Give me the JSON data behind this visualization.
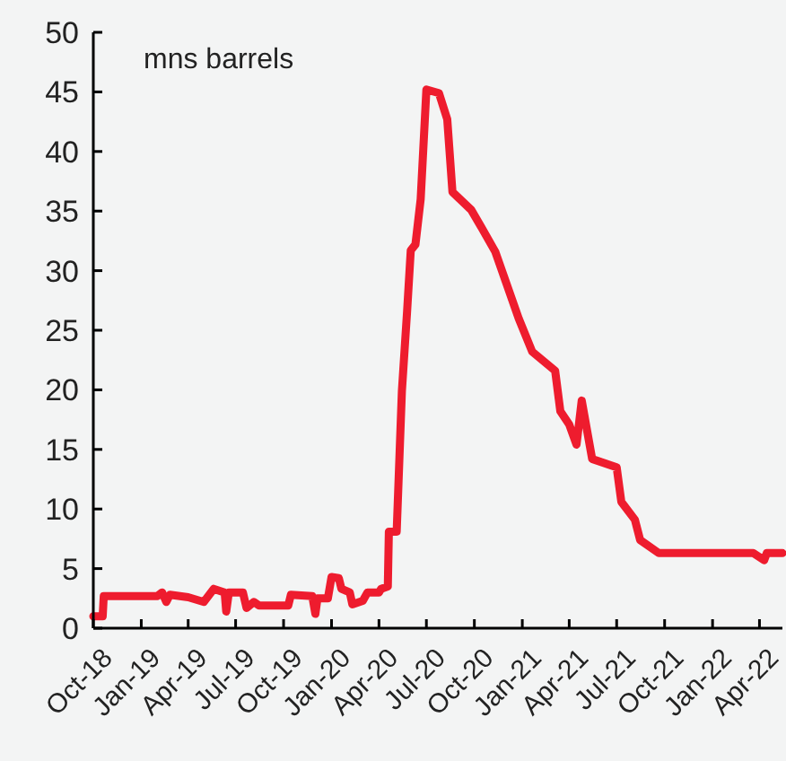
{
  "chart_data": {
    "type": "line",
    "ylabel": "mns barrels",
    "xlim": [
      "2018-10-01",
      "2022-05-15"
    ],
    "ylim": [
      0,
      50
    ],
    "yticks": [
      0,
      5,
      10,
      15,
      20,
      25,
      30,
      35,
      40,
      45,
      50
    ],
    "xticks": [
      {
        "value": "2018-10-01",
        "label": "Oct-18"
      },
      {
        "value": "2019-01-01",
        "label": "Jan-19"
      },
      {
        "value": "2019-04-01",
        "label": "Apr-19"
      },
      {
        "value": "2019-07-01",
        "label": "Jul-19"
      },
      {
        "value": "2019-10-01",
        "label": "Oct-19"
      },
      {
        "value": "2020-01-01",
        "label": "Jan-20"
      },
      {
        "value": "2020-04-01",
        "label": "Apr-20"
      },
      {
        "value": "2020-07-01",
        "label": "Jul-20"
      },
      {
        "value": "2020-10-01",
        "label": "Oct-20"
      },
      {
        "value": "2021-01-01",
        "label": "Jan-21"
      },
      {
        "value": "2021-04-01",
        "label": "Apr-21"
      },
      {
        "value": "2021-07-01",
        "label": "Jul-21"
      },
      {
        "value": "2021-10-01",
        "label": "Oct-21"
      },
      {
        "value": "2022-01-01",
        "label": "Jan-22"
      },
      {
        "value": "2022-04-01",
        "label": "Apr-22"
      }
    ],
    "grid": false,
    "marker": "none",
    "line_style": "solid",
    "series": [
      {
        "color": "#ee1c2e",
        "x": [
          "2018-10-01",
          "2018-10-19",
          "2018-10-21",
          "2019-02-01",
          "2019-02-10",
          "2019-02-18",
          "2019-02-25",
          "2019-04-01",
          "2019-05-01",
          "2019-05-20",
          "2019-06-10",
          "2019-06-13",
          "2019-06-18",
          "2019-07-15",
          "2019-07-22",
          "2019-08-05",
          "2019-08-15",
          "2019-10-10",
          "2019-10-15",
          "2019-11-25",
          "2019-12-01",
          "2019-12-05",
          "2019-12-25",
          "2020-01-01",
          "2020-01-15",
          "2020-01-20",
          "2020-02-05",
          "2020-02-10",
          "2020-03-01",
          "2020-03-10",
          "2020-04-01",
          "2020-04-05",
          "2020-04-18",
          "2020-04-20",
          "2020-05-05",
          "2020-05-15",
          "2020-05-25",
          "2020-06-01",
          "2020-06-10",
          "2020-06-20",
          "2020-07-01",
          "2020-07-25",
          "2020-08-10",
          "2020-08-20",
          "2020-09-25",
          "2020-10-15",
          "2020-11-10",
          "2020-12-01",
          "2020-12-25",
          "2021-01-20",
          "2021-03-05",
          "2021-03-15",
          "2021-04-01",
          "2021-04-15",
          "2021-04-25",
          "2021-05-15",
          "2021-07-01",
          "2021-07-10",
          "2021-08-05",
          "2021-08-15",
          "2021-09-20",
          "2022-03-20",
          "2022-04-10",
          "2022-04-15",
          "2022-05-15"
        ],
        "values": [
          1,
          1,
          2.7,
          2.7,
          3,
          2.2,
          2.8,
          2.6,
          2.2,
          3.3,
          3,
          1.4,
          3,
          3,
          1.7,
          2.2,
          1.9,
          1.9,
          2.8,
          2.7,
          1.2,
          2.5,
          2.5,
          4.3,
          4.2,
          3.3,
          3,
          2,
          2.3,
          3,
          3,
          3.3,
          3.5,
          8.1,
          8.1,
          19.9,
          26.6,
          31.7,
          32.2,
          36,
          45.2,
          44.9,
          42.7,
          36.6,
          35.1,
          33.6,
          31.6,
          29,
          26,
          23.2,
          21.6,
          18.2,
          17.1,
          15.4,
          19.1,
          14.2,
          13.5,
          10.6,
          9.1,
          7.4,
          6.3,
          6.3,
          5.7,
          6.3,
          6.3
        ]
      }
    ]
  }
}
